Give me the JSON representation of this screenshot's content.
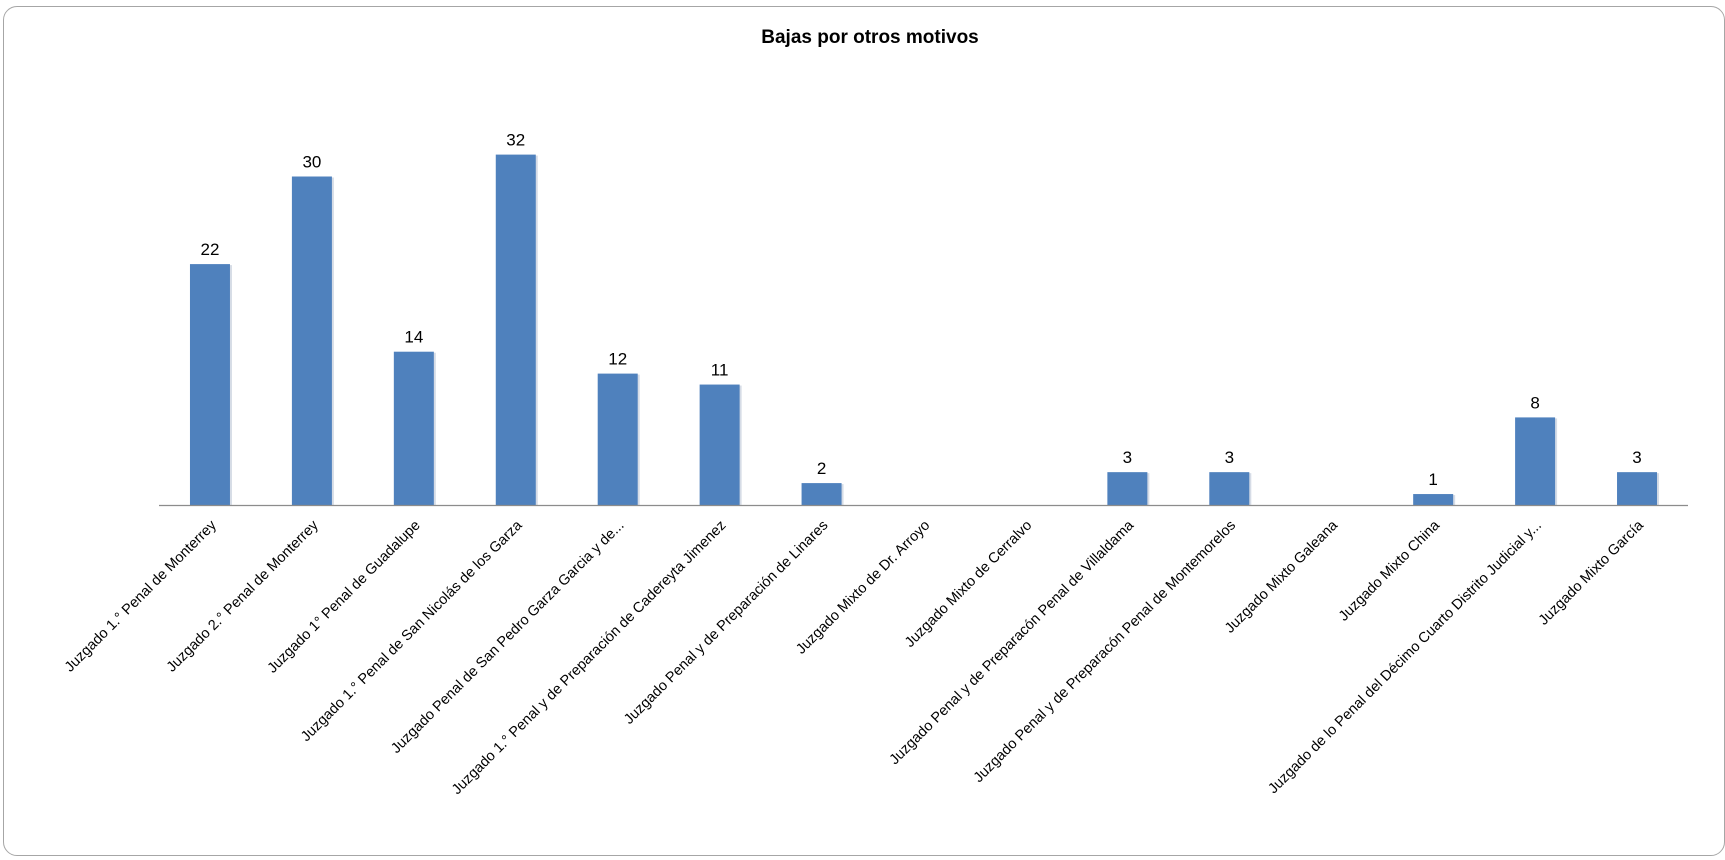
{
  "chart_data": {
    "type": "bar",
    "title": "Bajas por otros motivos",
    "xlabel": "",
    "ylabel": "",
    "categories": [
      "Juzgado 1.° Penal  de Monterrey",
      "Juzgado 2.° Penal de Monterrey",
      "Juzgado 1° Penal de Guadalupe",
      "Juzgado 1.° Penal de San Nicolás de los Garza",
      "Juzgado Penal de San Pedro Garza Garcia y de...",
      "Juzgado 1.° Penal y de Preparación de Cadereyta Jimenez",
      "Juzgado Penal y de Preparación de Linares",
      "Juzgado Mixto de  Dr. Arroyo",
      "Juzgado Mixto de  Cerralvo",
      "Juzgado Penal y de Preparacón Penal  de Villaldama",
      "Juzgado Penal y de Preparacón Penal  de Montemorelos",
      "Juzgado Mixto Galeana",
      "Juzgado Mixto China",
      "Juzgado de lo Penal del Décimo Cuarto Distrito Judicial y...",
      "Juzgado Mixto García"
    ],
    "values": [
      22,
      30,
      14,
      32,
      12,
      11,
      2,
      null,
      null,
      3,
      3,
      null,
      1,
      8,
      3
    ],
    "data_labels": [
      "22",
      "30",
      "14",
      "32",
      "12",
      "11",
      "2",
      "",
      "",
      "3",
      "3",
      "",
      "1",
      "8",
      "3"
    ],
    "ylim": [
      0,
      36
    ],
    "grid": false,
    "legend": "none",
    "bar_color": "#4f81bd"
  }
}
